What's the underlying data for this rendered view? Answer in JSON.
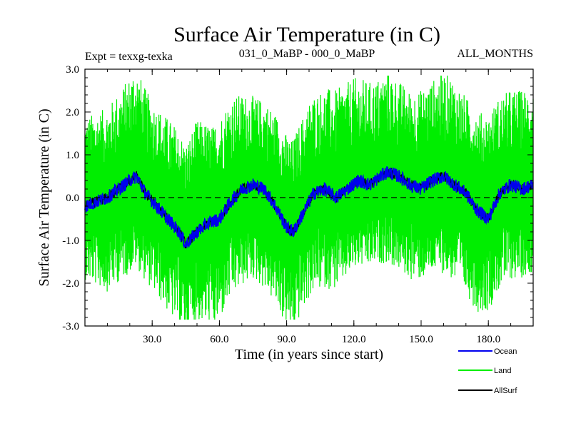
{
  "chart_data": {
    "type": "line",
    "title": "Surface Air Temperature (in C)",
    "subtitle_left": "Expt = texxg-texka",
    "subtitle_center": "031_0_MaBP - 000_0_MaBP",
    "subtitle_right": "ALL_MONTHS",
    "xlabel": "Time (in years since start)",
    "ylabel": "Surface Air Temperature (in C)",
    "xlim": [
      0,
      200
    ],
    "ylim": [
      -3.0,
      3.0
    ],
    "x_ticks": [
      30,
      60,
      90,
      120,
      150,
      180
    ],
    "x_tick_labels": [
      "30.0",
      "60.0",
      "90.0",
      "120.0",
      "150.0",
      "180.0"
    ],
    "y_ticks": [
      -3,
      -2,
      -1,
      0,
      1,
      2,
      3
    ],
    "y_tick_labels": [
      "-3.0",
      "-2.0",
      "-1.0",
      "0.0",
      "1.0",
      "2.0",
      "3.0"
    ],
    "reference_line": 0.0,
    "series": [
      {
        "name": "Land",
        "color": "#00ee00",
        "note": "monthly values, large-amplitude oscillation, approx -2.8 to 2.8",
        "envelope_x": [
          0,
          10,
          20,
          22,
          30,
          40,
          45,
          50,
          57,
          65,
          75,
          85,
          92,
          100,
          110,
          120,
          130,
          135,
          145,
          155,
          162,
          170,
          175,
          185,
          195,
          200
        ],
        "envelope_low": [
          -1.8,
          -2.2,
          -2.0,
          -1.9,
          -2.1,
          -2.5,
          -2.6,
          -2.4,
          -2.8,
          -2.3,
          -2.1,
          -2.4,
          -2.7,
          -2.3,
          -2.2,
          -1.9,
          -1.8,
          -1.9,
          -2.1,
          -2.0,
          -2.1,
          -2.3,
          -2.5,
          -2.2,
          -2.0,
          -1.9
        ],
        "envelope_high": [
          2.0,
          2.1,
          2.6,
          2.8,
          2.3,
          2.1,
          1.9,
          2.3,
          2.0,
          2.4,
          2.2,
          2.1,
          1.8,
          2.3,
          2.5,
          2.6,
          2.5,
          2.6,
          2.3,
          2.5,
          2.7,
          2.3,
          2.2,
          2.3,
          2.4,
          2.4
        ]
      },
      {
        "name": "Ocean",
        "color": "#0000ee",
        "note": "smoothed low-frequency variability",
        "x": [
          0,
          5,
          10,
          15,
          20,
          23,
          27,
          32,
          37,
          42,
          45,
          50,
          55,
          60,
          65,
          70,
          75,
          80,
          85,
          90,
          93,
          97,
          102,
          107,
          112,
          117,
          122,
          127,
          132,
          135,
          140,
          145,
          150,
          155,
          160,
          165,
          170,
          175,
          180,
          185,
          190,
          195,
          200
        ],
        "values": [
          -0.2,
          -0.1,
          0.0,
          0.2,
          0.4,
          0.5,
          0.1,
          -0.2,
          -0.5,
          -0.8,
          -1.1,
          -0.8,
          -0.6,
          -0.5,
          -0.1,
          0.2,
          0.3,
          0.2,
          -0.2,
          -0.7,
          -0.8,
          -0.4,
          0.1,
          0.2,
          0.0,
          0.2,
          0.4,
          0.3,
          0.5,
          0.6,
          0.5,
          0.3,
          0.2,
          0.4,
          0.5,
          0.3,
          0.1,
          -0.3,
          -0.5,
          0.1,
          0.3,
          0.2,
          0.3
        ]
      },
      {
        "name": "AllSurf",
        "color": "#000000",
        "note": "dominated by ocean curve, drawn underneath"
      }
    ],
    "legend": [
      {
        "label": "Ocean",
        "color": "#0000ee"
      },
      {
        "label": "Land",
        "color": "#00ee00"
      },
      {
        "label": "AllSurf",
        "color": "#000000"
      }
    ]
  }
}
